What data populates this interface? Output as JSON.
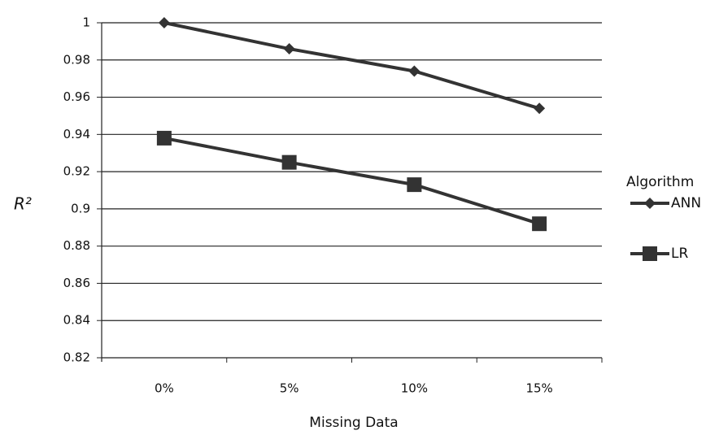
{
  "chart_data": {
    "type": "line",
    "categories": [
      "0%",
      "5%",
      "10%",
      "15%"
    ],
    "series": [
      {
        "name": "ANN",
        "color": "#333333",
        "marker": "diamond",
        "values": [
          1.0,
          0.986,
          0.974,
          0.954
        ]
      },
      {
        "name": "LR",
        "color": "#333333",
        "marker": "square",
        "values": [
          0.938,
          0.925,
          0.913,
          0.892
        ]
      }
    ],
    "ylim": [
      0.82,
      1.0
    ],
    "yticks": [
      0.82,
      0.84,
      0.86,
      0.88,
      0.9,
      0.92,
      0.94,
      0.96,
      0.98,
      1
    ],
    "grid": true,
    "y_label": "R²",
    "x_label": "Missing Data",
    "legend_title": "Algorithm",
    "legend_position": "right"
  }
}
